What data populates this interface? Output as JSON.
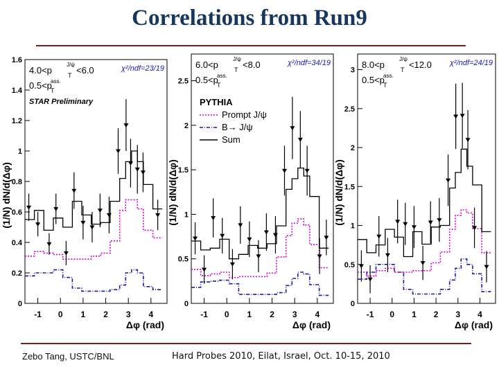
{
  "slide": {
    "title": "Correlations from Run9",
    "footer_left": "Zebo Tang, USTC/BNL",
    "footer_right": "Hard Probes 2010, Eilat, Israel, Oct. 10-15, 2010"
  },
  "colors": {
    "title": "#17375e",
    "rule": "#8b1a1a",
    "data": "#000000",
    "sum": "#000000",
    "prompt": "#d400d4",
    "bdecay": "#1a1aa8"
  },
  "legend": {
    "title": "PYTHIA",
    "entries": [
      {
        "label": "Prompt J/ψ",
        "series": "prompt"
      },
      {
        "label": "B→ J/ψ",
        "series": "bdecay"
      },
      {
        "label": "Sum",
        "series": "sum"
      }
    ]
  },
  "chart_data": [
    {
      "type": "line",
      "kinematics": [
        "4.0<p",
        "<6.0"
      ],
      "assoc": "0.5<p",
      "chi2": "χ²/ndf=23/19",
      "preliminary": "STAR Preliminary",
      "ylabel": "(1/N) dN/d(Δφ)",
      "xlabel": "Δφ (rad)",
      "xlim": [
        -1.57,
        4.71
      ],
      "ylim": [
        0,
        1.6
      ],
      "xticks": [
        -1,
        0,
        1,
        2,
        3,
        4
      ],
      "yticks": [
        0,
        0.2,
        0.4,
        0.6,
        0.8,
        1,
        1.2,
        1.4,
        1.6
      ],
      "bin_edges": [
        -1.571,
        -1.152,
        -0.733,
        -0.314,
        0.105,
        0.524,
        0.942,
        1.361,
        1.78,
        2.199,
        2.618,
        2.88,
        3.142,
        3.403,
        3.665,
        4.084,
        4.503
      ],
      "points": [
        {
          "x": -1.4,
          "y": 0.63,
          "err": 0.09
        },
        {
          "x": -1.0,
          "y": 0.52,
          "err": 0.08
        },
        {
          "x": -0.5,
          "y": 0.39,
          "err": 0.07
        },
        {
          "x": -0.2,
          "y": 0.62,
          "err": 0.1
        },
        {
          "x": 0.25,
          "y": 0.33,
          "err": 0.08
        },
        {
          "x": 0.6,
          "y": 0.74,
          "err": 0.12
        },
        {
          "x": 1.0,
          "y": 0.53,
          "err": 0.11
        },
        {
          "x": 1.4,
          "y": 0.5,
          "err": 0.1
        },
        {
          "x": 1.75,
          "y": 0.61,
          "err": 0.11
        },
        {
          "x": 2.15,
          "y": 0.58,
          "err": 0.12
        },
        {
          "x": 2.55,
          "y": 1.0,
          "err": 0.15
        },
        {
          "x": 2.9,
          "y": 1.17,
          "err": 0.17
        },
        {
          "x": 3.1,
          "y": 0.92,
          "err": 0.16
        },
        {
          "x": 3.4,
          "y": 0.88,
          "err": 0.16
        },
        {
          "x": 3.65,
          "y": 0.86,
          "err": 0.13
        },
        {
          "x": 4.3,
          "y": 0.58,
          "err": 0.1
        }
      ],
      "sum": [
        0.55,
        0.61,
        0.48,
        0.56,
        0.5,
        0.67,
        0.58,
        0.52,
        0.53,
        0.67,
        0.82,
        0.93,
        1.0,
        0.93,
        0.78,
        0.62
      ],
      "prompt": [
        0.31,
        0.34,
        0.33,
        0.32,
        0.29,
        0.29,
        0.29,
        0.31,
        0.33,
        0.41,
        0.61,
        0.68,
        0.68,
        0.62,
        0.48,
        0.43
      ],
      "bdecay": [
        0.18,
        0.2,
        0.2,
        0.22,
        0.17,
        0.1,
        0.08,
        0.08,
        0.08,
        0.09,
        0.12,
        0.2,
        0.22,
        0.2,
        0.11,
        0.09
      ]
    },
    {
      "type": "line",
      "kinematics": [
        "6.0<p",
        "<8.0"
      ],
      "assoc": "0.5<p",
      "chi2": "χ²/ndf=34/19",
      "ylabel": "(1/N) dN/d(Δφ)",
      "xlabel": "Δφ (rad)",
      "xlim": [
        -1.57,
        4.71
      ],
      "ylim": [
        0,
        2.8
      ],
      "xticks": [
        -1,
        0,
        1,
        2,
        3,
        4
      ],
      "yticks": [
        0,
        0.5,
        1,
        1.5,
        2,
        2.5
      ],
      "bin_edges": [
        -1.571,
        -1.152,
        -0.733,
        -0.314,
        0.105,
        0.524,
        0.942,
        1.361,
        1.78,
        2.199,
        2.618,
        2.88,
        3.142,
        3.403,
        3.665,
        4.084,
        4.503
      ],
      "points": [
        {
          "x": -1.4,
          "y": 0.73,
          "err": 0.18
        },
        {
          "x": -1.0,
          "y": 0.38,
          "err": 0.16
        },
        {
          "x": -0.6,
          "y": 0.96,
          "err": 0.22
        },
        {
          "x": -0.2,
          "y": 0.76,
          "err": 0.2
        },
        {
          "x": 0.25,
          "y": 0.44,
          "err": 0.17
        },
        {
          "x": 0.6,
          "y": 0.88,
          "err": 0.21
        },
        {
          "x": 1.0,
          "y": 0.72,
          "err": 0.2
        },
        {
          "x": 1.4,
          "y": 0.53,
          "err": 0.18
        },
        {
          "x": 1.75,
          "y": 0.8,
          "err": 0.21
        },
        {
          "x": 2.15,
          "y": 0.77,
          "err": 0.21
        },
        {
          "x": 2.55,
          "y": 1.49,
          "err": 0.28
        },
        {
          "x": 2.9,
          "y": 1.97,
          "err": 0.35
        },
        {
          "x": 3.25,
          "y": 1.84,
          "err": 0.32
        },
        {
          "x": 3.55,
          "y": 1.49,
          "err": 0.28
        },
        {
          "x": 4.1,
          "y": 0.53,
          "err": 0.2
        },
        {
          "x": 4.4,
          "y": 0.74,
          "err": 0.2
        }
      ],
      "sum": [
        0.7,
        0.6,
        0.62,
        0.72,
        0.5,
        0.55,
        0.65,
        0.62,
        0.67,
        0.87,
        1.28,
        1.4,
        1.52,
        1.43,
        1.2,
        0.62
      ],
      "prompt": [
        0.38,
        0.31,
        0.33,
        0.35,
        0.29,
        0.3,
        0.3,
        0.3,
        0.34,
        0.52,
        0.76,
        0.9,
        0.95,
        0.88,
        0.66,
        0.4
      ],
      "bdecay": [
        0.18,
        0.24,
        0.25,
        0.26,
        0.22,
        0.1,
        0.1,
        0.1,
        0.1,
        0.12,
        0.2,
        0.28,
        0.35,
        0.33,
        0.21,
        0.09
      ]
    },
    {
      "type": "line",
      "kinematics": [
        "8.0<p",
        "<12.0"
      ],
      "assoc": "0.5<p",
      "chi2": "χ²/ndf=24/19",
      "ylabel": "(1/N) dN/d(Δφ)",
      "xlabel": "Δφ (rad)",
      "xlim": [
        -1.57,
        4.71
      ],
      "ylim": [
        0,
        3.2
      ],
      "xticks": [
        -1,
        0,
        1,
        2,
        3,
        4
      ],
      "yticks": [
        0,
        0.5,
        1,
        1.5,
        2,
        2.5,
        3
      ],
      "bin_edges": [
        -1.571,
        -1.152,
        -0.733,
        -0.314,
        0.105,
        0.524,
        0.942,
        1.361,
        1.78,
        2.199,
        2.618,
        2.88,
        3.142,
        3.403,
        3.665,
        4.084,
        4.503
      ],
      "points": [
        {
          "x": -1.4,
          "y": 0.48,
          "err": 0.2
        },
        {
          "x": -1.0,
          "y": 0.31,
          "err": 0.18
        },
        {
          "x": -0.6,
          "y": 0.86,
          "err": 0.26
        },
        {
          "x": -0.2,
          "y": 0.62,
          "err": 0.22
        },
        {
          "x": 0.25,
          "y": 1.05,
          "err": 0.28
        },
        {
          "x": 0.6,
          "y": 1.02,
          "err": 0.27
        },
        {
          "x": 1.0,
          "y": 0.98,
          "err": 0.27
        },
        {
          "x": 1.4,
          "y": 0.52,
          "err": 0.22
        },
        {
          "x": 1.75,
          "y": 1.04,
          "err": 0.27
        },
        {
          "x": 2.15,
          "y": 1.07,
          "err": 0.28
        },
        {
          "x": 2.55,
          "y": 1.58,
          "err": 0.33
        },
        {
          "x": 2.9,
          "y": 2.4,
          "err": 0.42
        },
        {
          "x": 3.2,
          "y": 2.41,
          "err": 0.42
        },
        {
          "x": 3.45,
          "y": 2.1,
          "err": 0.38
        },
        {
          "x": 3.75,
          "y": 0.97,
          "err": 0.26
        },
        {
          "x": 4.3,
          "y": 0.47,
          "err": 0.2
        }
      ],
      "sum": [
        0.82,
        0.65,
        0.75,
        0.95,
        0.85,
        0.6,
        0.92,
        0.76,
        0.98,
        1.0,
        1.48,
        1.68,
        1.98,
        1.76,
        1.52,
        0.92
      ],
      "prompt": [
        0.4,
        0.35,
        0.42,
        0.45,
        0.4,
        0.4,
        0.42,
        0.42,
        0.52,
        0.66,
        0.95,
        1.13,
        1.2,
        1.16,
        0.96,
        0.65
      ],
      "bdecay": [
        0.31,
        0.4,
        0.5,
        0.5,
        0.4,
        0.18,
        0.12,
        0.12,
        0.12,
        0.18,
        0.3,
        0.45,
        0.57,
        0.5,
        0.38,
        0.15
      ]
    }
  ]
}
